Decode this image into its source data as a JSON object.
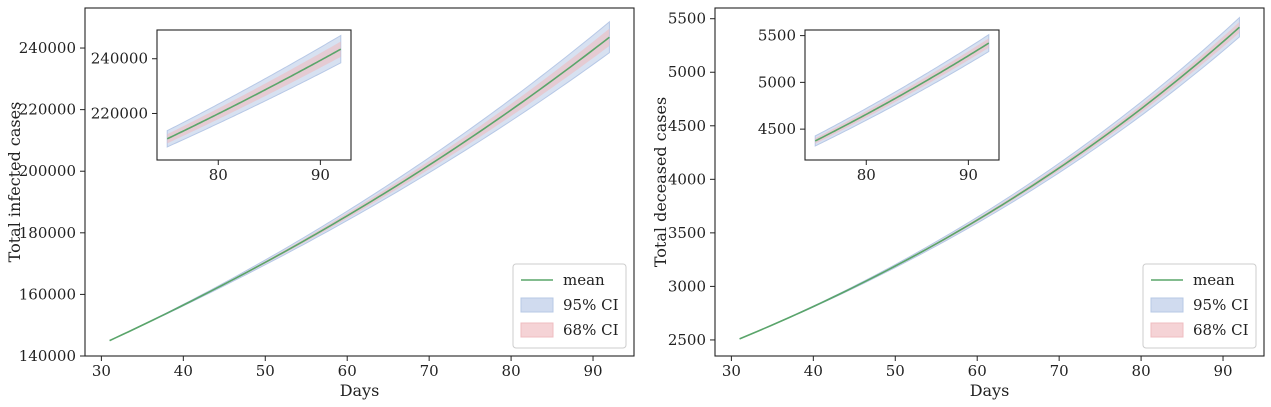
{
  "chart_data": [
    {
      "type": "line",
      "xlabel": "Days",
      "ylabel": "Total infected cases",
      "xlim": [
        28,
        95
      ],
      "ylim": [
        140000,
        253000
      ],
      "xticks": [
        30,
        40,
        50,
        60,
        70,
        80,
        90
      ],
      "yticks": [
        140000,
        160000,
        180000,
        200000,
        220000,
        240000
      ],
      "x_start": 31,
      "x_end": 92,
      "y_start": 145000,
      "y_end": 243500,
      "ci95_halfwidth_end": 5000,
      "ci68_halfwidth_end": 2800,
      "legend": {
        "position": "bottom-right",
        "entries": [
          "mean",
          "95% CI",
          "68% CI"
        ]
      },
      "inset": {
        "xlim": [
          74,
          93
        ],
        "ylim": [
          203000,
          250500
        ],
        "xticks": [
          80,
          90
        ],
        "yticks": [
          220000,
          240000
        ],
        "x_start": 75,
        "x_end": 92
      }
    },
    {
      "type": "line",
      "xlabel": "Days",
      "ylabel": "Total deceased cases",
      "xlim": [
        28,
        95
      ],
      "ylim": [
        2350,
        5600
      ],
      "xticks": [
        30,
        40,
        50,
        60,
        70,
        80,
        90
      ],
      "yticks": [
        2500,
        3000,
        3500,
        4000,
        4500,
        5000,
        5500
      ],
      "x_start": 31,
      "x_end": 92,
      "y_start": 2510,
      "y_end": 5420,
      "ci95_halfwidth_end": 90,
      "ci68_halfwidth_end": 50,
      "legend": {
        "position": "bottom-right",
        "entries": [
          "mean",
          "95% CI",
          "68% CI"
        ]
      },
      "inset": {
        "xlim": [
          74,
          93
        ],
        "ylim": [
          4170,
          5560
        ],
        "xticks": [
          80,
          90
        ],
        "yticks": [
          4500,
          5000,
          5500
        ],
        "x_start": 75,
        "x_end": 92
      }
    }
  ],
  "colors": {
    "mean": "#5aa56a",
    "ci95": "#b7c8e6",
    "ci68": "#efbcc0",
    "axis": "#222222"
  }
}
